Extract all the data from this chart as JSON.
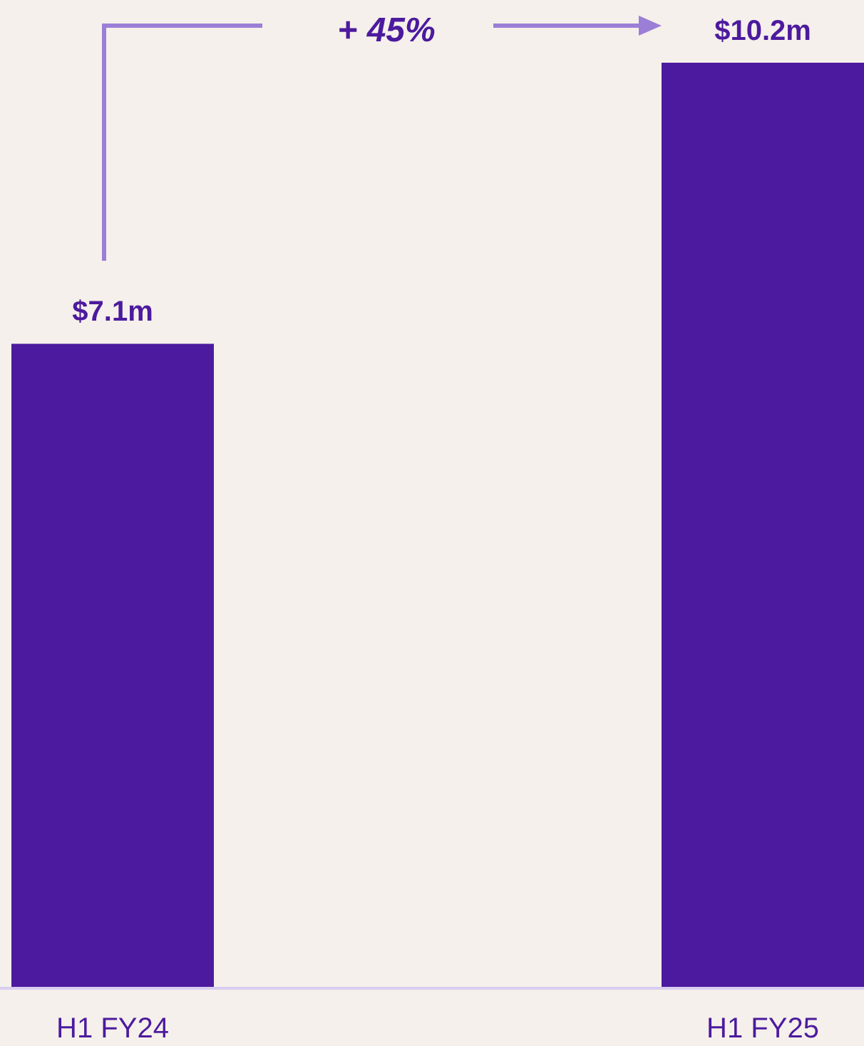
{
  "chart_data": {
    "type": "bar",
    "categories": [
      "H1 FY24",
      "H1 FY25"
    ],
    "values": [
      7.1,
      10.2
    ],
    "value_labels": [
      "$7.1m",
      "$10.2m"
    ],
    "color": "#4c1a9e",
    "annotations": [
      "+ 45%"
    ]
  }
}
